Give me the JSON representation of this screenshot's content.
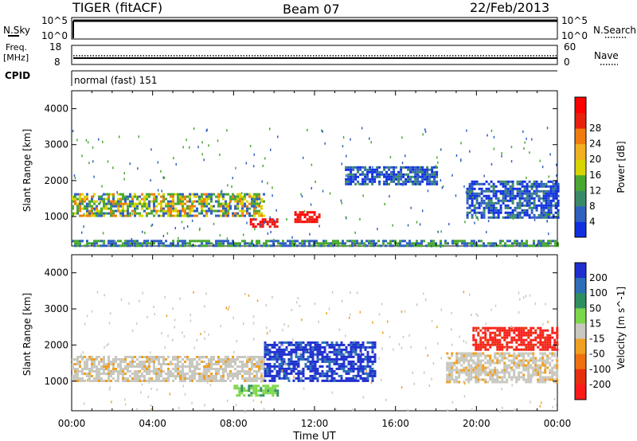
{
  "header": {
    "station": "TIGER (fitACF)",
    "beam": "Beam 07",
    "date": "22/Feb/2013"
  },
  "nsky_panel": {
    "left_label": "N.Sky",
    "left_ticks": [
      "10^5",
      "10^0"
    ],
    "right_ticks": [
      "10^5",
      "10^0"
    ],
    "right_label": "N.Search"
  },
  "freq_panel": {
    "left_label_1": "Freq.",
    "left_label_2": "[MHz]",
    "left_ticks": [
      "18",
      "8"
    ],
    "right_ticks": [
      "60",
      "0"
    ],
    "right_label": "Nave"
  },
  "cpid_panel": {
    "label": "CPID",
    "value": "normal (fast) 151"
  },
  "time_axis": {
    "label": "Time UT",
    "ticks": [
      "00:00",
      "04:00",
      "08:00",
      "12:00",
      "16:00",
      "20:00",
      "00:00"
    ]
  },
  "chart_data": [
    {
      "type": "heatmap",
      "variable": "Power",
      "ylabel": "Slant Range [km]",
      "yticks": [
        1000,
        2000,
        3000,
        4000
      ],
      "ylim": [
        180,
        4500
      ],
      "xlim_hours": [
        0,
        24
      ],
      "colorbar": {
        "label": "Power [dB]",
        "ticks": [
          "4",
          "8",
          "12",
          "16",
          "20",
          "24",
          "28"
        ],
        "colors": [
          "#1030e0",
          "#3060c0",
          "#3a8a6a",
          "#48a830",
          "#d8d400",
          "#f0b020",
          "#f07c10",
          "#e82010",
          "#ff0000"
        ]
      },
      "features": [
        {
          "name": "main band",
          "start_h": 0.0,
          "end_h": 9.5,
          "range_km": [
            1000,
            1650
          ],
          "level": "mid"
        },
        {
          "name": "strong patch 1",
          "start_h": 8.8,
          "end_h": 10.2,
          "range_km": [
            700,
            950
          ],
          "level": "high"
        },
        {
          "name": "strong patch 2",
          "start_h": 11.0,
          "end_h": 12.2,
          "range_km": [
            850,
            1150
          ],
          "level": "high"
        },
        {
          "name": "upper band",
          "start_h": 13.5,
          "end_h": 18.0,
          "range_km": [
            1900,
            2400
          ],
          "level": "low-mid"
        },
        {
          "name": "late band",
          "start_h": 19.5,
          "end_h": 24.0,
          "range_km": [
            1000,
            2000
          ],
          "level": "low-mid"
        },
        {
          "name": "near range clutter",
          "start_h": 0.0,
          "end_h": 24.0,
          "range_km": [
            200,
            350
          ],
          "level": "low"
        }
      ]
    },
    {
      "type": "heatmap",
      "variable": "Velocity",
      "ylabel": "Slant Range [km]",
      "yticks": [
        1000,
        2000,
        3000,
        4000
      ],
      "ylim": [
        180,
        4500
      ],
      "xlim_hours": [
        0,
        24
      ],
      "colorbar": {
        "label": "Velocity [m s^-1]",
        "ticks": [
          "200",
          "100",
          "50",
          "15",
          "-15",
          "-50",
          "-100",
          "-200"
        ],
        "colors": [
          "#2030d0",
          "#2e6fb8",
          "#2f8f60",
          "#7cd64a",
          "#c8c8c0",
          "#f0a020",
          "#f07010",
          "#e83010",
          "#ff1a1a"
        ]
      },
      "features": [
        {
          "name": "gray ground-scatter band",
          "start_h": 0.0,
          "end_h": 9.5,
          "range_km": [
            1000,
            1700
          ],
          "velocity": "near zero"
        },
        {
          "name": "blue patches",
          "start_h": 9.5,
          "end_h": 15.0,
          "range_km": [
            1000,
            2100
          ],
          "velocity": "positive"
        },
        {
          "name": "green patch",
          "start_h": 8.0,
          "end_h": 10.2,
          "range_km": [
            600,
            900
          ],
          "velocity": "positive moderate"
        },
        {
          "name": "red patch",
          "start_h": 19.8,
          "end_h": 24.0,
          "range_km": [
            1900,
            2500
          ],
          "velocity": "negative"
        },
        {
          "name": "gray late band",
          "start_h": 18.5,
          "end_h": 24.0,
          "range_km": [
            1000,
            1800
          ],
          "velocity": "near zero"
        }
      ]
    }
  ]
}
